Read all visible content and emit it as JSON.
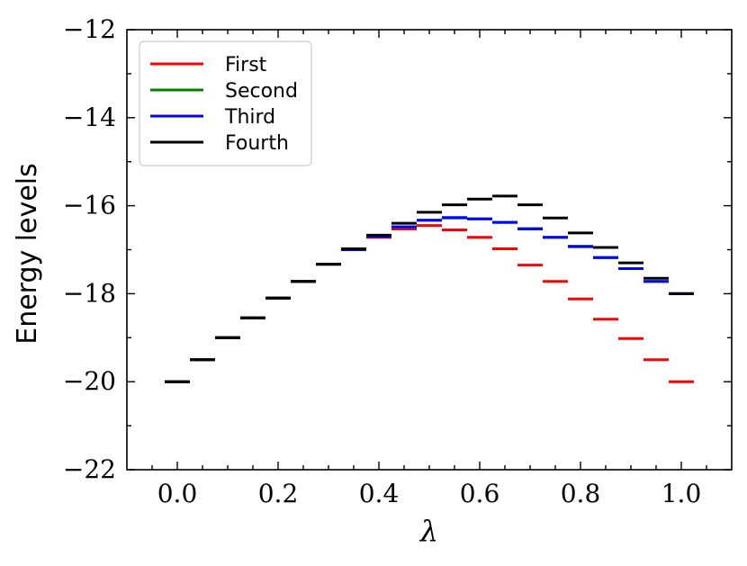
{
  "chart_data": {
    "type": "line",
    "xlabel": "λ",
    "ylabel": "Energy levels",
    "xlim": [
      -0.1,
      1.1
    ],
    "ylim": [
      -22,
      -12
    ],
    "xticks": [
      0.0,
      0.2,
      0.4,
      0.6,
      0.8,
      1.0
    ],
    "xtick_labels": [
      "0.0",
      "0.2",
      "0.4",
      "0.6",
      "0.8",
      "1.0"
    ],
    "yticks": [
      -22,
      -20,
      -18,
      -16,
      -14,
      -12
    ],
    "ytick_labels": [
      "−22",
      "−20",
      "−18",
      "−16",
      "−14",
      "−12"
    ],
    "grid": false,
    "legend_position": "top-left",
    "marker": "horizontal dash",
    "x": [
      0.0,
      0.05,
      0.1,
      0.15,
      0.2,
      0.25,
      0.3,
      0.35,
      0.4,
      0.45,
      0.5,
      0.55,
      0.6,
      0.65,
      0.7,
      0.75,
      0.8,
      0.85,
      0.9,
      0.95,
      1.0
    ],
    "series": [
      {
        "name": "First",
        "color": "#ff0000",
        "values": [
          -20.0,
          -19.5,
          -19.0,
          -18.55,
          -18.1,
          -17.72,
          -17.33,
          -17.0,
          -16.72,
          -16.53,
          -16.45,
          -16.55,
          -16.72,
          -16.98,
          -17.35,
          -17.72,
          -18.12,
          -18.58,
          -19.02,
          -19.5,
          -20.0
        ]
      },
      {
        "name": "Second",
        "color": "#008000",
        "values": [
          -20.0,
          -19.5,
          -19.0,
          -18.55,
          -18.1,
          -17.72,
          -17.33,
          -17.0,
          -16.7,
          -16.48,
          -16.33,
          -16.28,
          -16.3,
          -16.38,
          -16.52,
          -16.72,
          -16.92,
          -17.18,
          -17.43,
          -17.72,
          -18.0
        ]
      },
      {
        "name": "Third",
        "color": "#0000ff",
        "values": [
          -20.0,
          -19.5,
          -19.0,
          -18.55,
          -18.1,
          -17.72,
          -17.33,
          -17.0,
          -16.7,
          -16.48,
          -16.33,
          -16.27,
          -16.3,
          -16.38,
          -16.53,
          -16.72,
          -16.93,
          -17.18,
          -17.43,
          -17.72,
          -18.0
        ]
      },
      {
        "name": "Fourth",
        "color": "#000000",
        "values": [
          -20.0,
          -19.5,
          -19.0,
          -18.55,
          -18.1,
          -17.72,
          -17.33,
          -16.98,
          -16.67,
          -16.4,
          -16.15,
          -15.98,
          -15.85,
          -15.78,
          -15.98,
          -16.28,
          -16.62,
          -16.95,
          -17.3,
          -17.65,
          -18.0
        ]
      }
    ]
  }
}
